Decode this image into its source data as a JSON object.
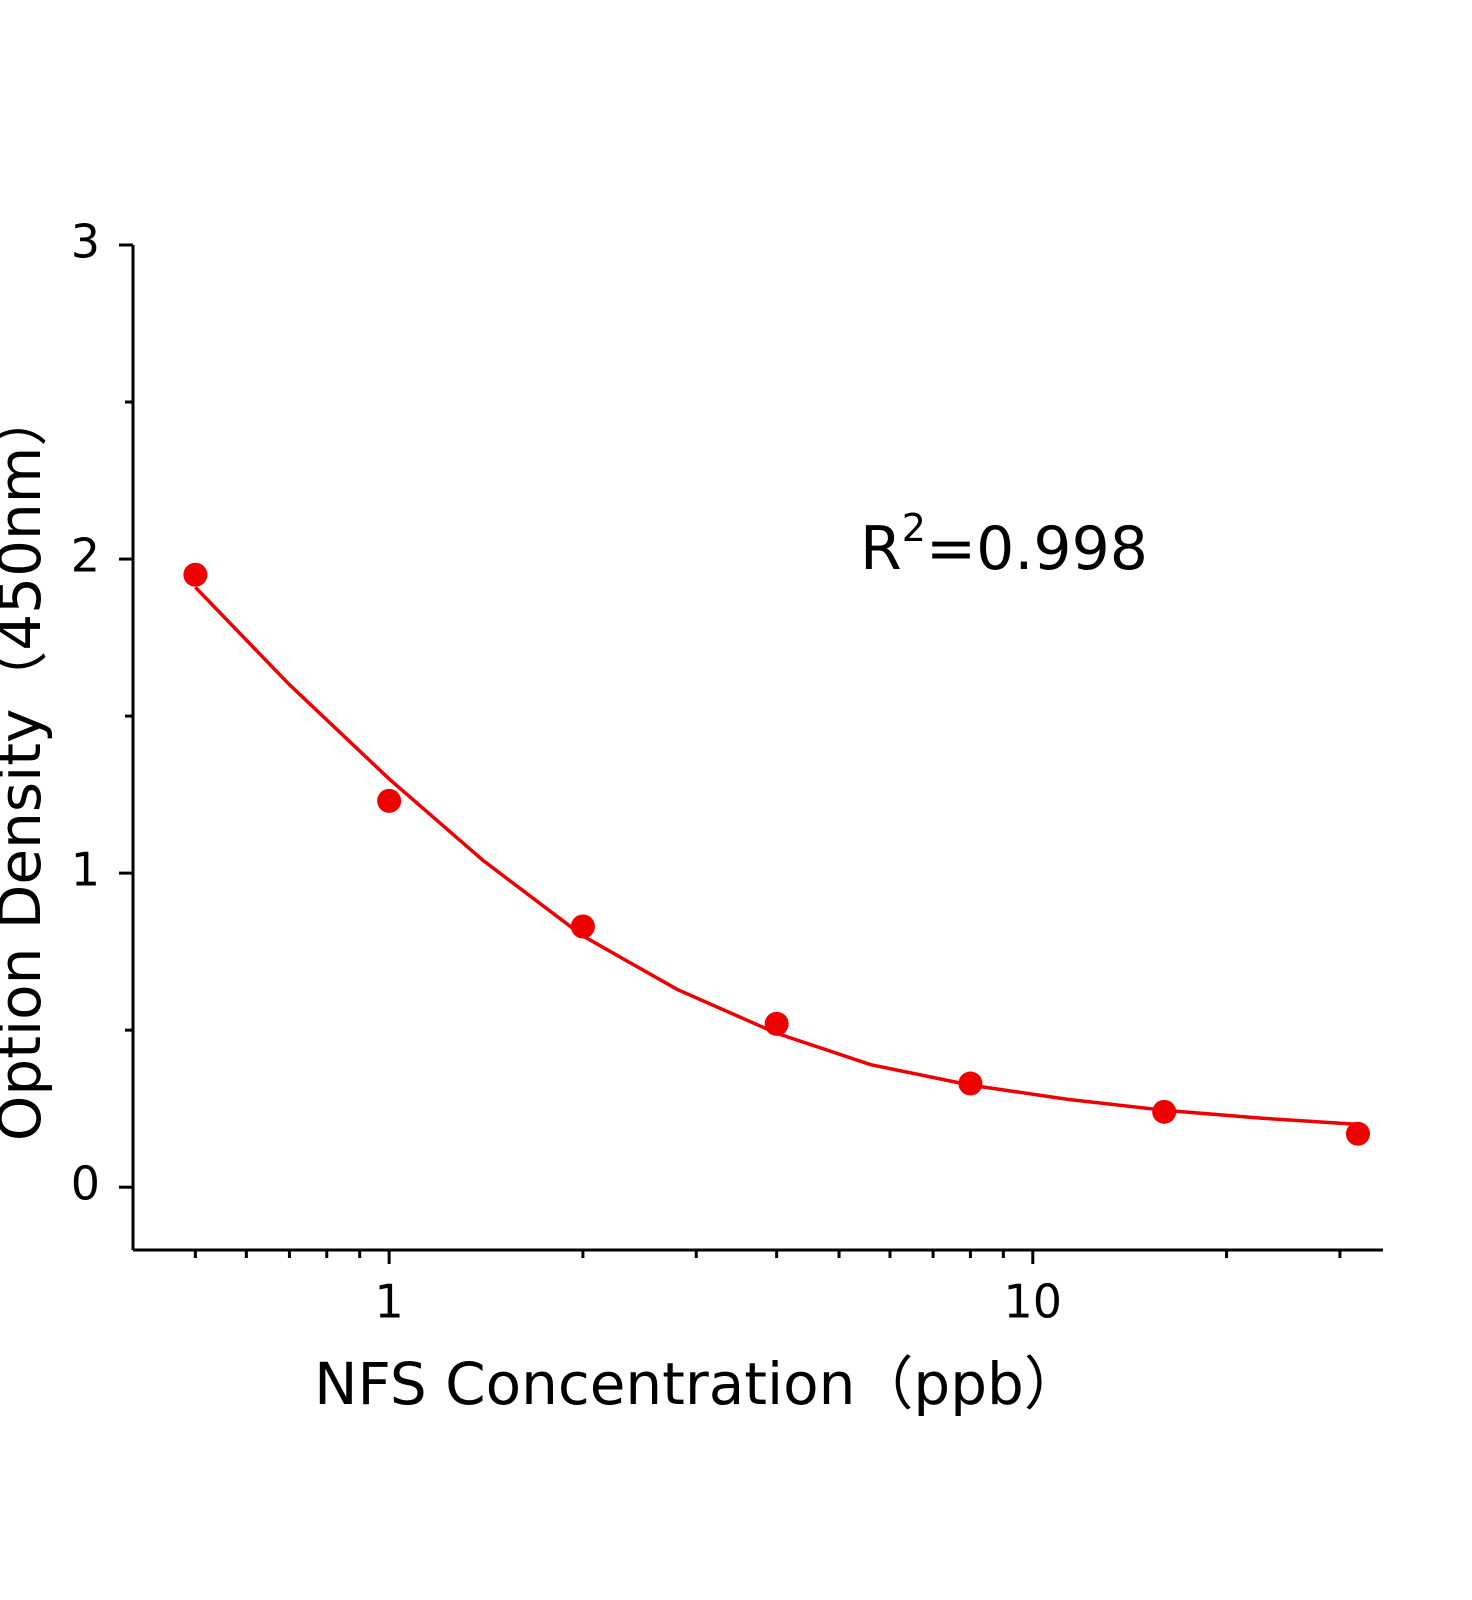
{
  "chart_data": {
    "type": "scatter",
    "xlabel": "NFS Concentration（ppb）",
    "ylabel": "Option Density（450nm）",
    "annotation": {
      "base": "R",
      "superscript": "2",
      "text": "=0.998"
    },
    "x": [
      0.5,
      1,
      2,
      4,
      8,
      16,
      32
    ],
    "values": [
      1.95,
      1.23,
      0.83,
      0.52,
      0.33,
      0.24,
      0.17
    ],
    "fit": {
      "x": [
        0.5,
        0.7,
        1,
        1.4,
        2,
        2.8,
        4,
        5.6,
        8,
        11.3,
        16,
        22.6,
        32
      ],
      "values": [
        1.91,
        1.6,
        1.3,
        1.04,
        0.8,
        0.63,
        0.49,
        0.39,
        0.325,
        0.28,
        0.245,
        0.22,
        0.2
      ]
    },
    "color": "#ee0000",
    "xscale": "log",
    "xlim": [
      0.4,
      35
    ],
    "xticks": [
      1,
      10
    ],
    "xminorticks": [
      0.5,
      0.6,
      0.7,
      0.8,
      0.9,
      2,
      3,
      4,
      5,
      6,
      7,
      8,
      9,
      20,
      30
    ],
    "ylim": [
      -0.2,
      3
    ],
    "yticks": [
      0,
      1,
      2,
      3
    ],
    "yminorticks": [
      0.5,
      1.5,
      2.5
    ]
  }
}
